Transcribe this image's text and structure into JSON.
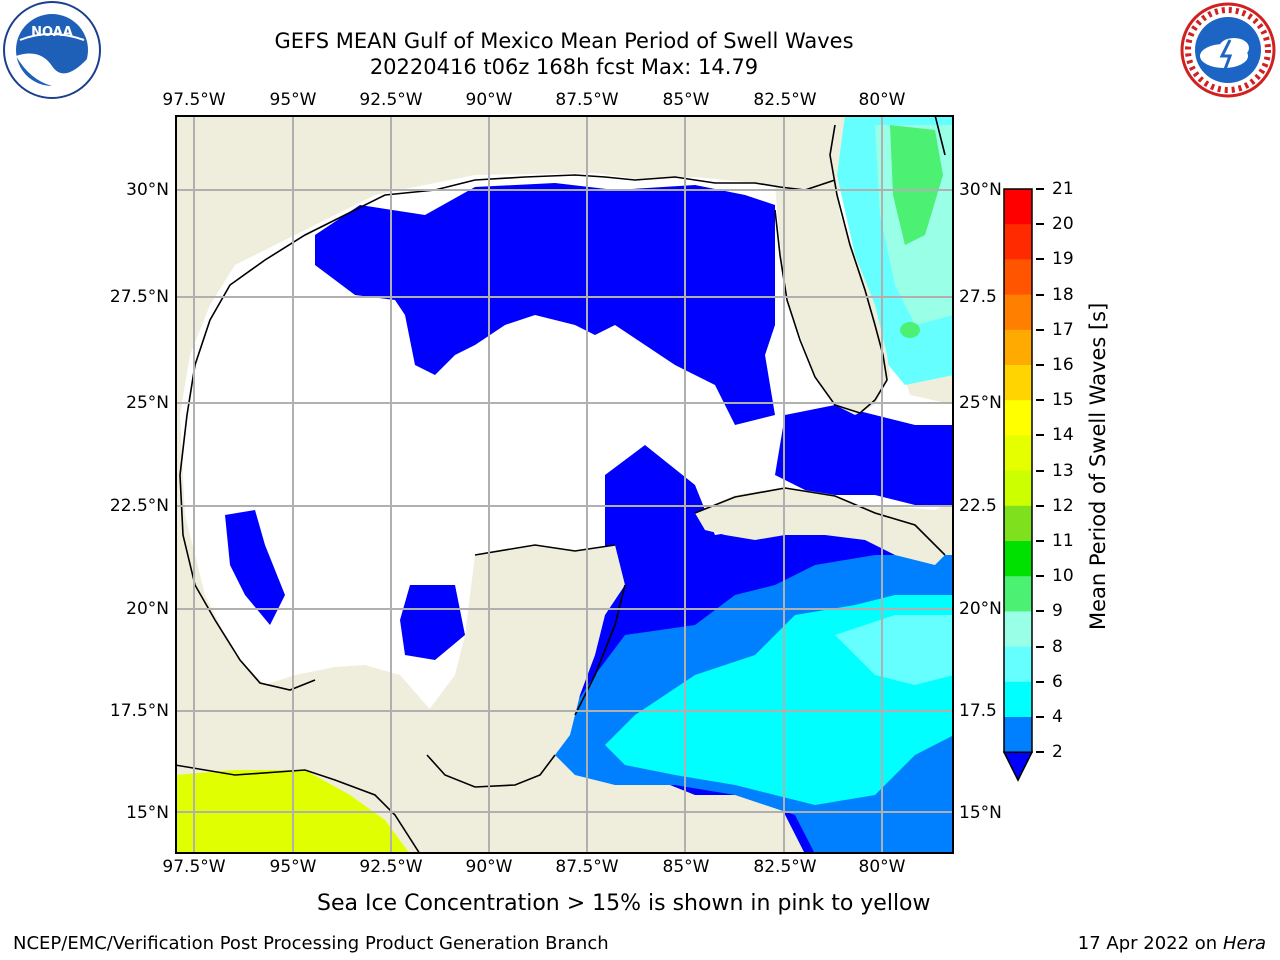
{
  "title": {
    "line1": "GEFS MEAN Gulf of Mexico Mean Period of Swell Waves",
    "line2": "20220416 t06z 168h fcst   Max: 14.79"
  },
  "map": {
    "lon_labels": [
      "97.5°W",
      "95°W",
      "92.5°W",
      "90°W",
      "87.5°W",
      "85°W",
      "82.5°W",
      "80°W"
    ],
    "lat_labels_left": [
      "30°N",
      "27.5°N",
      "25°N",
      "22.5°N",
      "20°N",
      "17.5°N",
      "15°N"
    ],
    "lat_labels_right": [
      "30°N",
      "27.5",
      "25°N",
      "22.5",
      "20°N",
      "17.5",
      "15°N"
    ],
    "colors": {
      "land": "#efeedc",
      "ocean_missing": "#ffffff",
      "coast": "#000000",
      "grid": "#b0b0b0",
      "ice_yellow": "#e0ff00"
    }
  },
  "colorbar": {
    "label": "Mean Period of Swell Waves [s]",
    "ticks": [
      "21",
      "20",
      "19",
      "18",
      "17",
      "16",
      "15",
      "14",
      "13",
      "12",
      "11",
      "10",
      "9",
      "8",
      "6",
      "4",
      "2"
    ],
    "colors": [
      "#ff0000",
      "#ff2a00",
      "#ff5500",
      "#ff8000",
      "#ffaa00",
      "#ffd400",
      "#ffff00",
      "#e6ff00",
      "#ccff00",
      "#7fe01e",
      "#00e100",
      "#4cf073",
      "#99ffe6",
      "#66ffff",
      "#00ffff",
      "#0080ff",
      "#0000ff"
    ]
  },
  "footnote": "Sea Ice Concentration > 15% is shown in pink to yellow",
  "credit_left": "NCEP/EMC/Verification Post Processing Product Generation Branch",
  "credit_right_prefix": "17 Apr 2022 on ",
  "credit_right_host": "Hera",
  "logos": {
    "left": "NOAA",
    "right": "NATIONAL WEATHER SERVICE"
  }
}
